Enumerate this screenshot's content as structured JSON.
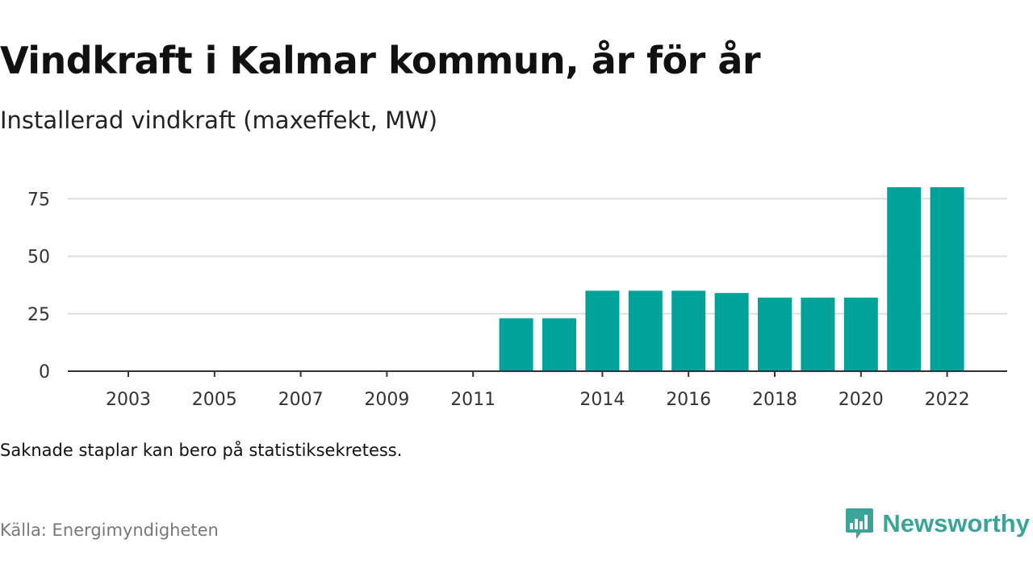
{
  "title": "Vindkraft i Kalmar kommun, år för år",
  "subtitle": "Installerad vindkraft (maxeffekt, MW)",
  "note": "Saknade staplar kan bero på statistiksekretess.",
  "source": "Källa: Energimyndigheten",
  "brand": {
    "name": "Newsworthy",
    "color": "#3ba39a",
    "icon": "newsworthy-logo-icon"
  },
  "chart_data": {
    "type": "bar",
    "categories": [
      "2003",
      "2004",
      "2005",
      "2006",
      "2007",
      "2008",
      "2009",
      "2010",
      "2011",
      "2012",
      "2013",
      "2014",
      "2015",
      "2016",
      "2017",
      "2018",
      "2019",
      "2020",
      "2021",
      "2022"
    ],
    "values": [
      0,
      0,
      0,
      0,
      0,
      0,
      0,
      0,
      0,
      23,
      23,
      35,
      35,
      35,
      34,
      32,
      32,
      32,
      80,
      80
    ],
    "x_tick_labels": [
      "2003",
      "2005",
      "2007",
      "2009",
      "2011",
      "2014",
      "2016",
      "2018",
      "2020",
      "2022"
    ],
    "y_ticks": [
      0,
      25,
      50,
      75
    ],
    "ylim": [
      0,
      80
    ],
    "bar_color": "#00a39a",
    "grid": "horizontal",
    "xlabel": "",
    "ylabel": ""
  }
}
